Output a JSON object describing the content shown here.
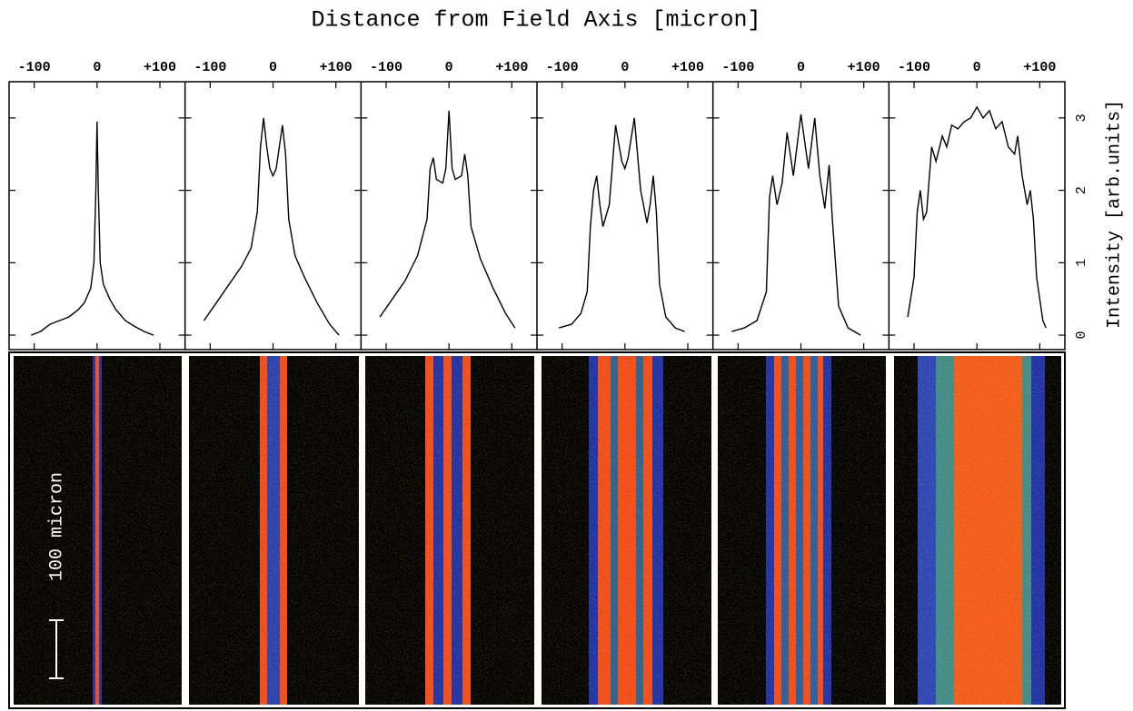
{
  "title": "Distance from Field Axis [micron]",
  "y_label": "Intensity [arb.units]",
  "scale_bar_label": "100 micron",
  "chart_data": [
    {
      "type": "line",
      "color": "#000000",
      "x": [
        -105,
        -90,
        -75,
        -60,
        -45,
        -30,
        -20,
        -10,
        -5,
        -2,
        0,
        2,
        5,
        10,
        20,
        30,
        45,
        60,
        75,
        90
      ],
      "values": [
        0,
        0.05,
        0.15,
        0.2,
        0.25,
        0.35,
        0.45,
        0.65,
        1.0,
        2.0,
        2.95,
        2.0,
        1.0,
        0.7,
        0.5,
        0.35,
        0.2,
        0.12,
        0.05,
        0
      ],
      "xlim": [
        -140,
        140
      ],
      "xticks": [
        -100,
        0,
        {
          "value": 100,
          "label": "+100"
        }
      ],
      "ylim": [
        -0.2,
        3.5
      ],
      "yticks": [
        0,
        1,
        2,
        3
      ]
    },
    {
      "type": "line",
      "color": "#000000",
      "x": [
        -110,
        -90,
        -70,
        -50,
        -35,
        -25,
        -20,
        -15,
        -10,
        -5,
        0,
        5,
        10,
        15,
        20,
        25,
        35,
        50,
        70,
        90,
        105
      ],
      "values": [
        0.2,
        0.45,
        0.7,
        0.95,
        1.2,
        1.7,
        2.6,
        3.0,
        2.6,
        2.3,
        2.2,
        2.3,
        2.6,
        2.9,
        2.5,
        1.6,
        1.1,
        0.8,
        0.45,
        0.15,
        0
      ],
      "xlim": [
        -140,
        140
      ],
      "xticks": [
        -100,
        0,
        {
          "value": 100,
          "label": "+100"
        }
      ],
      "ylim": [
        -0.2,
        3.5
      ],
      "yticks": [
        0,
        1,
        2,
        3
      ]
    },
    {
      "type": "line",
      "color": "#000000",
      "x": [
        -110,
        -90,
        -70,
        -50,
        -35,
        -30,
        -25,
        -20,
        -10,
        -5,
        0,
        5,
        10,
        20,
        25,
        30,
        35,
        50,
        70,
        90,
        105
      ],
      "values": [
        0.25,
        0.5,
        0.75,
        1.1,
        1.6,
        2.3,
        2.45,
        2.15,
        2.1,
        2.3,
        3.1,
        2.3,
        2.15,
        2.2,
        2.5,
        2.2,
        1.5,
        1.05,
        0.65,
        0.3,
        0.1
      ],
      "xlim": [
        -140,
        140
      ],
      "xticks": [
        -100,
        0,
        {
          "value": 100,
          "label": "+100"
        }
      ],
      "ylim": [
        -0.2,
        3.5
      ],
      "yticks": [
        0,
        1,
        2,
        3
      ]
    },
    {
      "type": "line",
      "color": "#000000",
      "x": [
        -105,
        -85,
        -70,
        -60,
        -55,
        -50,
        -45,
        -40,
        -35,
        -25,
        -15,
        -5,
        0,
        5,
        15,
        25,
        35,
        40,
        45,
        50,
        55,
        65,
        80,
        95
      ],
      "values": [
        0.1,
        0.15,
        0.3,
        0.6,
        1.5,
        2.0,
        2.2,
        1.8,
        1.5,
        1.8,
        2.9,
        2.4,
        2.3,
        2.45,
        3.0,
        2.0,
        1.55,
        1.8,
        2.2,
        1.7,
        0.7,
        0.25,
        0.1,
        0.05
      ],
      "xlim": [
        -140,
        140
      ],
      "xticks": [
        -100,
        0,
        {
          "value": 100,
          "label": "+100"
        }
      ],
      "ylim": [
        -0.2,
        3.5
      ],
      "yticks": [
        0,
        1,
        2,
        3
      ]
    },
    {
      "type": "line",
      "color": "#000000",
      "x": [
        -110,
        -90,
        -70,
        -55,
        -50,
        -45,
        -38,
        -30,
        -22,
        -12,
        0,
        12,
        22,
        30,
        38,
        45,
        50,
        60,
        75,
        95
      ],
      "values": [
        0.05,
        0.1,
        0.2,
        0.6,
        1.9,
        2.2,
        1.8,
        2.1,
        2.8,
        2.2,
        3.05,
        2.3,
        3.0,
        2.2,
        1.75,
        2.35,
        1.6,
        0.4,
        0.1,
        0
      ],
      "xlim": [
        -140,
        140
      ],
      "xticks": [
        -100,
        0,
        {
          "value": 100,
          "label": "+100"
        }
      ],
      "ylim": [
        -0.2,
        3.5
      ],
      "yticks": [
        0,
        1,
        2,
        3
      ]
    },
    {
      "type": "line",
      "color": "#000000",
      "x": [
        -110,
        -100,
        -95,
        -90,
        -85,
        -80,
        -72,
        -65,
        -55,
        -48,
        -40,
        -30,
        -20,
        -10,
        0,
        10,
        20,
        30,
        40,
        50,
        60,
        65,
        72,
        80,
        85,
        90,
        95,
        105,
        110
      ],
      "values": [
        0.25,
        0.8,
        1.7,
        2.0,
        1.6,
        1.7,
        2.6,
        2.4,
        2.75,
        2.6,
        2.9,
        2.85,
        2.95,
        3.0,
        3.15,
        3.0,
        3.1,
        2.85,
        2.95,
        2.6,
        2.5,
        2.75,
        2.2,
        1.8,
        2.0,
        1.6,
        0.8,
        0.2,
        0.1
      ],
      "xlim": [
        -140,
        140
      ],
      "xticks": [
        -100,
        0,
        {
          "value": 100,
          "label": "+100"
        }
      ],
      "ylim": [
        -0.2,
        3.5
      ],
      "yticks": [
        0,
        1,
        2,
        3
      ]
    }
  ]
}
